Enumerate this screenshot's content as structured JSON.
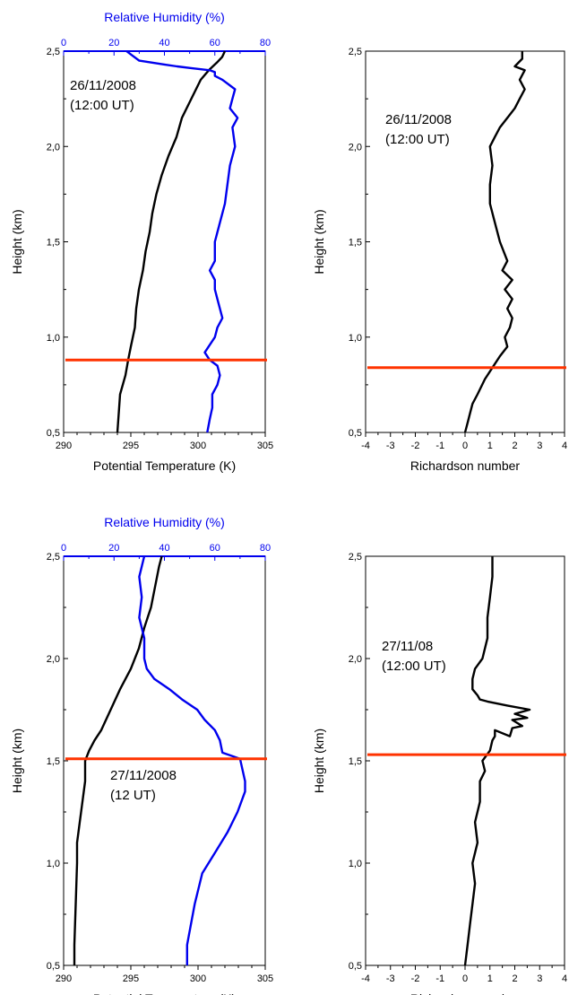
{
  "colors": {
    "pt_line": "#000000",
    "rh_line": "#0000ee",
    "pbl_line": "#ff3300",
    "axis": "#000000",
    "rh_axis": "#0000ee"
  },
  "chart_data": [
    {
      "type": "line",
      "panel": "top-left",
      "xlabel": "Potential Temperature (K)",
      "ylabel": "Height (km)",
      "xlim": [
        290,
        305
      ],
      "ylim": [
        0.5,
        2.5
      ],
      "x_ticks": [
        "290",
        "295",
        "300",
        "305"
      ],
      "y_ticks": [
        "0,5",
        "1,0",
        "1,5",
        "2,0",
        "2,5"
      ],
      "secondary_x": {
        "label": "Relative Humidity (%)",
        "lim": [
          0,
          80
        ],
        "ticks": [
          "0",
          "20",
          "40",
          "60",
          "80"
        ]
      },
      "annotation": [
        "26/11/2008",
        "(12:00 UT)"
      ],
      "hline": {
        "y": 0.88
      },
      "series": [
        {
          "axis": "x",
          "x": [
            294.0,
            294.1,
            294.2,
            294.6,
            294.8,
            295.0,
            295.3,
            295.4,
            295.6,
            295.9,
            296.1,
            296.4,
            296.6,
            296.9,
            297.3,
            297.8,
            298.4,
            298.8,
            299.5,
            300.2,
            300.8,
            301.4,
            301.8,
            302.0
          ],
          "y": [
            0.5,
            0.6,
            0.7,
            0.8,
            0.88,
            0.95,
            1.05,
            1.15,
            1.25,
            1.35,
            1.45,
            1.55,
            1.65,
            1.75,
            1.85,
            1.95,
            2.05,
            2.15,
            2.25,
            2.35,
            2.4,
            2.44,
            2.47,
            2.5
          ]
        },
        {
          "axis": "x2",
          "x": [
            57,
            58,
            59,
            59,
            61,
            62,
            61,
            58,
            56,
            60,
            61,
            63,
            62,
            61,
            60,
            60,
            58,
            60,
            60,
            60,
            62,
            64,
            65,
            66,
            68,
            67,
            69,
            66,
            67,
            68,
            63,
            60,
            60,
            58,
            51,
            45,
            40,
            30,
            27,
            25
          ],
          "y": [
            0.5,
            0.57,
            0.63,
            0.7,
            0.75,
            0.8,
            0.85,
            0.88,
            0.92,
            1.0,
            1.05,
            1.1,
            1.15,
            1.2,
            1.25,
            1.3,
            1.35,
            1.4,
            1.45,
            1.5,
            1.6,
            1.7,
            1.8,
            1.9,
            2.0,
            2.1,
            2.15,
            2.2,
            2.25,
            2.3,
            2.35,
            2.37,
            2.39,
            2.4,
            2.41,
            2.42,
            2.43,
            2.45,
            2.48,
            2.5
          ]
        }
      ]
    },
    {
      "type": "line",
      "panel": "top-right",
      "xlabel": "Richardson number",
      "ylabel": "Height (km)",
      "xlim": [
        -4,
        4
      ],
      "ylim": [
        0.5,
        2.5
      ],
      "x_ticks": [
        "-4",
        "-3",
        "-2",
        "-1",
        "0",
        "1",
        "2",
        "3",
        "4"
      ],
      "y_ticks": [
        "0,5",
        "1,0",
        "1,5",
        "2,0",
        "2,5"
      ],
      "annotation": [
        "26/11/2008",
        "(12:00 UT)"
      ],
      "hline": {
        "y": 0.84
      },
      "series": [
        {
          "x": [
            0.0,
            0.1,
            0.2,
            0.3,
            0.5,
            0.8,
            1.1,
            1.4,
            1.7,
            1.6,
            1.8,
            1.9,
            1.7,
            1.9,
            1.6,
            1.9,
            1.5,
            1.7,
            1.4,
            1.2,
            1.0,
            1.0,
            1.1,
            1.0,
            1.2,
            1.4,
            1.7,
            2.0,
            2.2,
            2.4,
            2.2,
            2.4,
            2.0,
            2.3,
            2.3
          ],
          "y": [
            0.5,
            0.55,
            0.6,
            0.65,
            0.7,
            0.78,
            0.84,
            0.9,
            0.95,
            1.0,
            1.05,
            1.1,
            1.15,
            1.2,
            1.25,
            1.3,
            1.35,
            1.4,
            1.5,
            1.6,
            1.7,
            1.8,
            1.9,
            2.0,
            2.05,
            2.1,
            2.15,
            2.2,
            2.25,
            2.3,
            2.35,
            2.4,
            2.42,
            2.46,
            2.5
          ]
        }
      ]
    },
    {
      "type": "line",
      "panel": "bottom-left",
      "xlabel": "Potential Temperature (K)",
      "ylabel": "Height (km)",
      "xlim": [
        290,
        305
      ],
      "ylim": [
        0.5,
        2.5
      ],
      "x_ticks": [
        "290",
        "295",
        "300",
        "305"
      ],
      "y_ticks": [
        "0,5",
        "1,0",
        "1,5",
        "2,0",
        "2,5"
      ],
      "secondary_x": {
        "label": "Relative Humidity (%)",
        "lim": [
          0,
          80
        ],
        "ticks": [
          "0",
          "20",
          "40",
          "60",
          "80"
        ]
      },
      "annotation": [
        "27/11/2008",
        "(12 UT)"
      ],
      "hline": {
        "y": 1.51
      },
      "series": [
        {
          "axis": "x",
          "x": [
            290.8,
            290.8,
            290.9,
            291.0,
            291.0,
            291.2,
            291.4,
            291.6,
            291.6,
            291.9,
            292.3,
            292.8,
            293.5,
            294.2,
            295.0,
            295.6,
            296.0,
            296.5,
            296.8,
            297.1,
            297.3
          ],
          "y": [
            0.5,
            0.6,
            0.8,
            1.0,
            1.1,
            1.2,
            1.3,
            1.4,
            1.5,
            1.55,
            1.6,
            1.65,
            1.75,
            1.85,
            1.95,
            2.05,
            2.15,
            2.25,
            2.35,
            2.45,
            2.5
          ]
        },
        {
          "axis": "x2",
          "x": [
            49,
            49,
            52,
            55,
            60,
            65,
            69,
            72,
            72,
            70,
            63,
            62,
            60,
            56,
            53,
            47,
            42,
            36,
            33,
            32,
            32,
            30,
            31,
            30,
            31,
            32
          ],
          "y": [
            0.5,
            0.6,
            0.8,
            0.95,
            1.05,
            1.15,
            1.25,
            1.35,
            1.4,
            1.51,
            1.54,
            1.6,
            1.65,
            1.7,
            1.75,
            1.8,
            1.85,
            1.9,
            1.95,
            2.0,
            2.1,
            2.2,
            2.3,
            2.4,
            2.45,
            2.5
          ]
        }
      ]
    },
    {
      "type": "line",
      "panel": "bottom-right",
      "xlabel": "Richardson number",
      "ylabel": "Height (km)",
      "xlim": [
        -4,
        4
      ],
      "ylim": [
        0.5,
        2.5
      ],
      "x_ticks": [
        "-4",
        "-3",
        "-2",
        "-1",
        "0",
        "1",
        "2",
        "3",
        "4"
      ],
      "y_ticks": [
        "0,5",
        "1,0",
        "1,5",
        "2,0",
        "2,5"
      ],
      "annotation": [
        "27/11/08",
        "(12:00 UT)"
      ],
      "hline": {
        "y": 1.53
      },
      "series": [
        {
          "x": [
            0.0,
            0.1,
            0.2,
            0.3,
            0.4,
            0.3,
            0.5,
            0.4,
            0.6,
            0.6,
            0.8,
            0.7,
            1.0,
            1.1,
            1.2,
            1.2,
            1.8,
            1.9,
            2.3,
            1.9,
            2.5,
            2.0,
            2.6,
            1.7,
            0.9,
            0.6,
            0.5,
            0.3,
            0.3,
            0.4,
            0.7,
            0.9,
            0.9,
            1.0,
            1.1,
            1.1
          ],
          "y": [
            0.5,
            0.6,
            0.7,
            0.8,
            0.9,
            1.0,
            1.1,
            1.2,
            1.3,
            1.4,
            1.45,
            1.5,
            1.55,
            1.6,
            1.62,
            1.65,
            1.62,
            1.66,
            1.67,
            1.7,
            1.71,
            1.73,
            1.75,
            1.77,
            1.79,
            1.8,
            1.82,
            1.85,
            1.9,
            1.95,
            2.0,
            2.1,
            2.2,
            2.3,
            2.4,
            2.5
          ]
        }
      ]
    }
  ]
}
